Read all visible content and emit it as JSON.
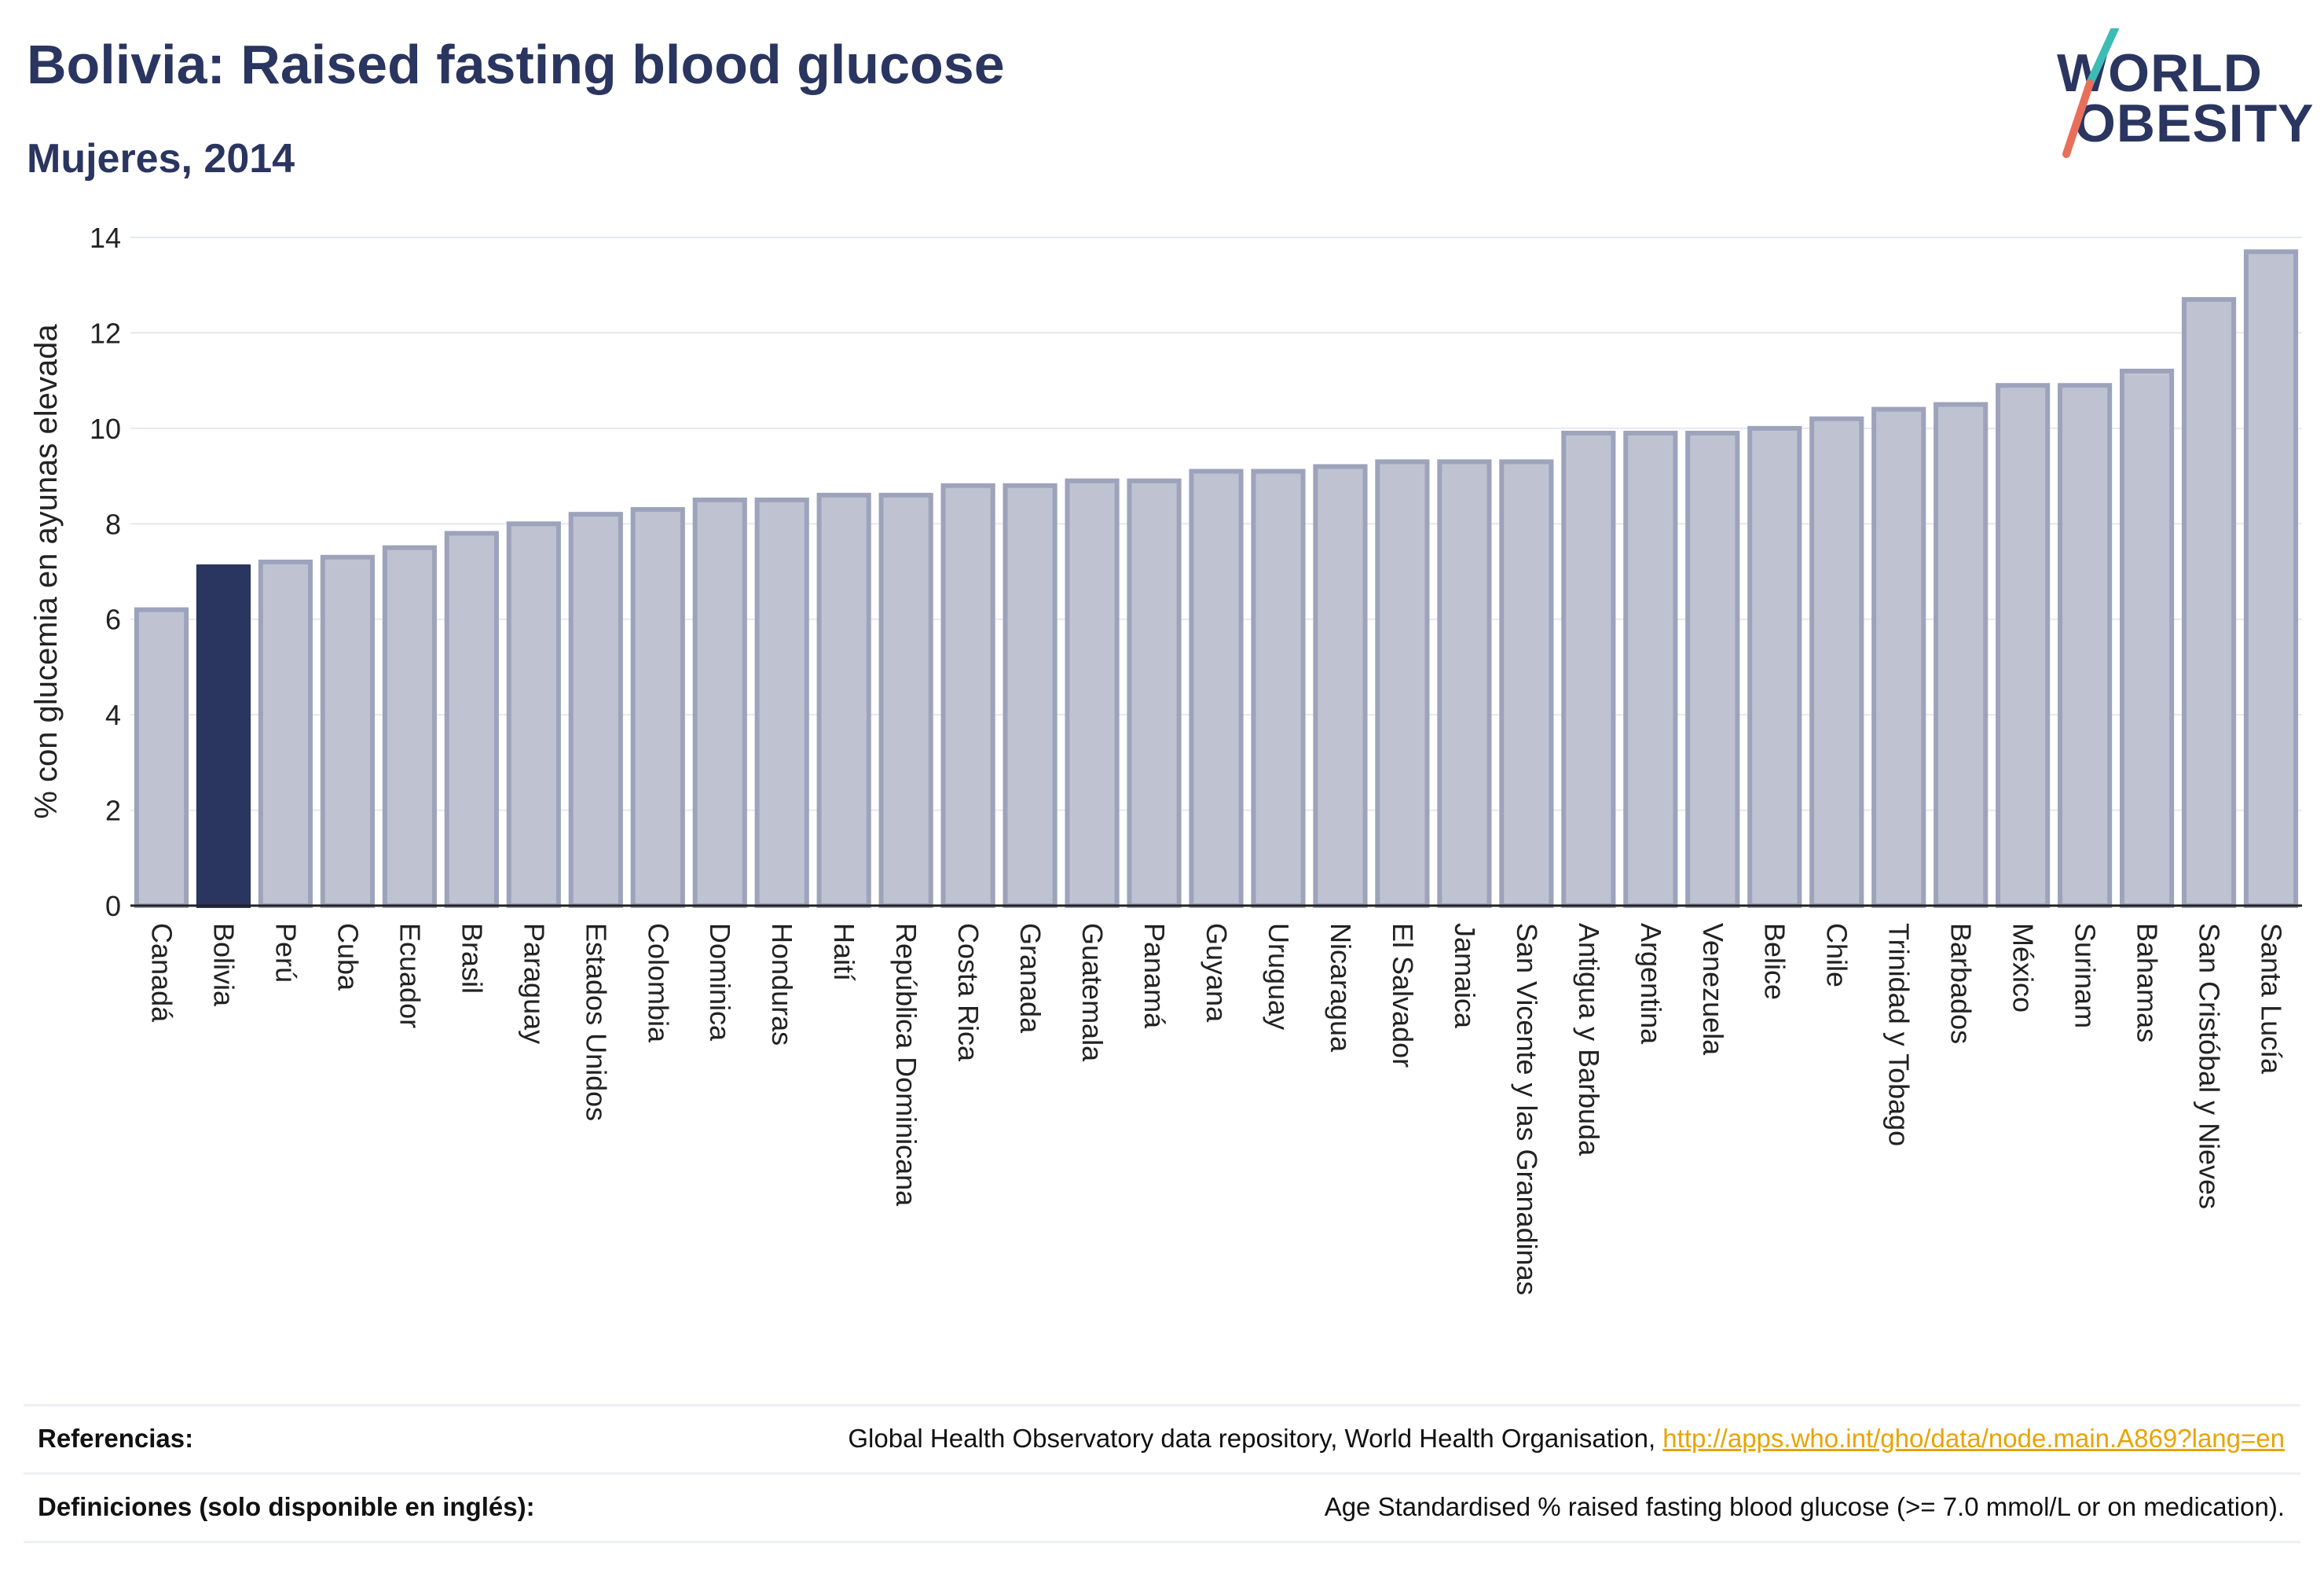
{
  "header": {
    "title": "Bolivia: Raised fasting blood glucose",
    "subtitle": "Mujeres, 2014"
  },
  "logo": {
    "line1": "WORLD",
    "line2": "OBESITY",
    "stroke_colors": [
      "#3cbcb4",
      "#e8705a"
    ]
  },
  "colors": {
    "highlight": "#2a3560",
    "bar_fill": "#bfc3d1",
    "bar_stroke": "#9da3bb",
    "grid": "#e6e8ef",
    "axis_text": "#222222",
    "link": "#e8a400"
  },
  "chart_data": {
    "type": "bar",
    "ylabel": "% con glucemia en ayunas elevada",
    "ylim": [
      0,
      14
    ],
    "yticks": [
      0,
      2,
      4,
      6,
      8,
      10,
      12,
      14
    ],
    "grid": true,
    "highlight_category": "Bolivia",
    "categories": [
      "Canadá",
      "Bolivia",
      "Perú",
      "Cuba",
      "Ecuador",
      "Brasil",
      "Paraguay",
      "Estados Unidos",
      "Colombia",
      "Dominica",
      "Honduras",
      "Haití",
      "República Dominicana",
      "Costa Rica",
      "Granada",
      "Guatemala",
      "Panamá",
      "Guyana",
      "Uruguay",
      "Nicaragua",
      "El Salvador",
      "Jamaica",
      "San Vicente y las Granadinas",
      "Antigua y Barbuda",
      "Argentina",
      "Venezuela",
      "Belice",
      "Chile",
      "Trinidad y Tobago",
      "Barbados",
      "México",
      "Surinam",
      "Bahamas",
      "San Cristóbal y Nieves",
      "Santa Lucía"
    ],
    "values": [
      6.2,
      7.1,
      7.2,
      7.3,
      7.5,
      7.8,
      8.0,
      8.2,
      8.3,
      8.5,
      8.5,
      8.6,
      8.6,
      8.8,
      8.8,
      8.9,
      8.9,
      9.1,
      9.1,
      9.2,
      9.3,
      9.3,
      9.3,
      9.9,
      9.9,
      9.9,
      10.0,
      10.2,
      10.4,
      10.5,
      10.9,
      10.9,
      11.2,
      12.7,
      13.7
    ]
  },
  "footer": {
    "references_label": "Referencias:",
    "references_text": "Global Health Observatory data repository, World Health Organisation, ",
    "references_link": "http://apps.who.int/gho/data/node.main.A869?lang=en",
    "definitions_label": "Definiciones (solo disponible en inglés):",
    "definitions_text": "Age Standardised % raised fasting blood glucose (>= 7.0 mmol/L or on medication)."
  }
}
